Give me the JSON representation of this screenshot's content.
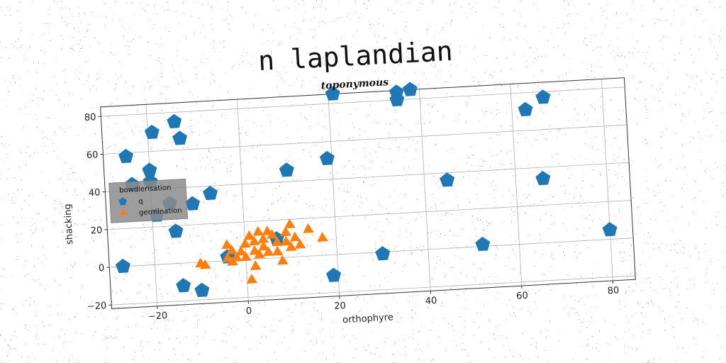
{
  "chart_data": {
    "type": "scatter",
    "suptitle": "n laplandian",
    "title": "toponymous",
    "xlabel": "orthophyre",
    "ylabel": "shacking",
    "xlim": [
      -30,
      85
    ],
    "ylim": [
      -22,
      85
    ],
    "xticks": [
      -20,
      0,
      20,
      40,
      60,
      80
    ],
    "yticks": [
      -20,
      0,
      20,
      40,
      60,
      80
    ],
    "grid": true,
    "legend": {
      "title": "bowdlerisation",
      "placement": "center-left"
    },
    "series": [
      {
        "name": "q",
        "marker": "pentagon",
        "color": "#1f77b4",
        "points": [
          [
            -25,
            58
          ],
          [
            -19,
            70
          ],
          [
            -14,
            75
          ],
          [
            -13,
            66
          ],
          [
            -20,
            50
          ],
          [
            -20,
            44
          ],
          [
            -24,
            43
          ],
          [
            -19,
            26
          ],
          [
            -16,
            32
          ],
          [
            -11,
            31
          ],
          [
            -7,
            36
          ],
          [
            -15,
            17
          ],
          [
            -27,
            0
          ],
          [
            -14,
            -12
          ],
          [
            -10,
            -15
          ],
          [
            -4,
            2
          ],
          [
            7,
            10
          ],
          [
            10,
            46
          ],
          [
            19,
            51
          ],
          [
            21,
            85
          ],
          [
            35,
            84
          ],
          [
            35,
            80
          ],
          [
            38,
            85
          ],
          [
            45,
            36
          ],
          [
            30,
            -1
          ],
          [
            52,
            1
          ],
          [
            19,
            -11
          ],
          [
            63,
            71
          ],
          [
            67,
            77
          ],
          [
            66,
            34
          ],
          [
            80,
            5
          ]
        ]
      },
      {
        "name": "germination",
        "marker": "triangle",
        "color": "#ff7f0e",
        "points": [
          [
            -10,
            -1
          ],
          [
            -9,
            -2
          ],
          [
            -4,
            1
          ],
          [
            -4,
            8
          ],
          [
            -3,
            5
          ],
          [
            -3,
            -1
          ],
          [
            -2,
            1
          ],
          [
            -1,
            4
          ],
          [
            0,
            8
          ],
          [
            0,
            1
          ],
          [
            1,
            12
          ],
          [
            1,
            -11
          ],
          [
            2,
            9
          ],
          [
            2,
            4
          ],
          [
            2,
            -4
          ],
          [
            3,
            14
          ],
          [
            3,
            2
          ],
          [
            4,
            10
          ],
          [
            4,
            6
          ],
          [
            5,
            3
          ],
          [
            5,
            14
          ],
          [
            6,
            12
          ],
          [
            7,
            8
          ],
          [
            7,
            3
          ],
          [
            8,
            -2
          ],
          [
            9,
            13
          ],
          [
            9,
            8
          ],
          [
            10,
            5
          ],
          [
            10,
            17
          ],
          [
            11,
            10
          ],
          [
            12,
            6
          ],
          [
            14,
            14
          ],
          [
            17,
            9
          ]
        ]
      }
    ]
  }
}
